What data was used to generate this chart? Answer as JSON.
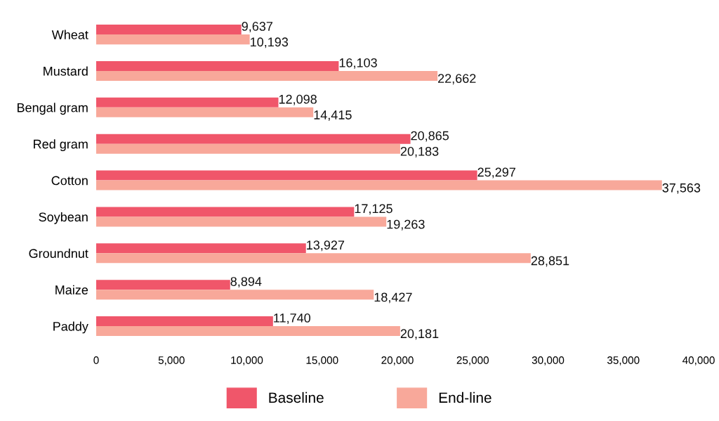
{
  "chart_data": {
    "type": "bar",
    "orientation": "horizontal",
    "categories": [
      "Wheat",
      "Mustard",
      "Bengal gram",
      "Red gram",
      "Cotton",
      "Soybean",
      "Groundnut",
      "Maize",
      "Paddy"
    ],
    "series": [
      {
        "name": "Baseline",
        "color": "#f0566a",
        "values": [
          9637,
          16103,
          12098,
          20865,
          25297,
          17125,
          13927,
          8894,
          11740
        ],
        "value_labels": [
          "9,637",
          "16,103",
          "12,098",
          "20,865",
          "25,297",
          "17,125",
          "13,927",
          "8,894",
          "11,740"
        ]
      },
      {
        "name": "End-line",
        "color": "#f8a89a",
        "values": [
          10193,
          22662,
          14415,
          20183,
          37563,
          19263,
          28851,
          18427,
          20181
        ],
        "value_labels": [
          "10,193",
          "22,662",
          "14,415",
          "20,183",
          "37,563",
          "19,263",
          "28,851",
          "18,427",
          "20,181"
        ]
      }
    ],
    "xlim": [
      0,
      40000
    ],
    "xticks": [
      0,
      {
        "value": 5000,
        "label": "5,000"
      },
      {
        "value": 10000,
        "label": "10,000"
      },
      {
        "value": 15000,
        "label": "15,000"
      },
      {
        "value": 20000,
        "label": "20,000"
      },
      {
        "value": 25000,
        "label": "25,000"
      },
      {
        "value": 30000,
        "label": "30,000"
      },
      {
        "value": 35000,
        "label": "35,000"
      },
      {
        "value": 40000,
        "label": "40,000"
      }
    ],
    "grid": false,
    "legend": "bottom"
  }
}
